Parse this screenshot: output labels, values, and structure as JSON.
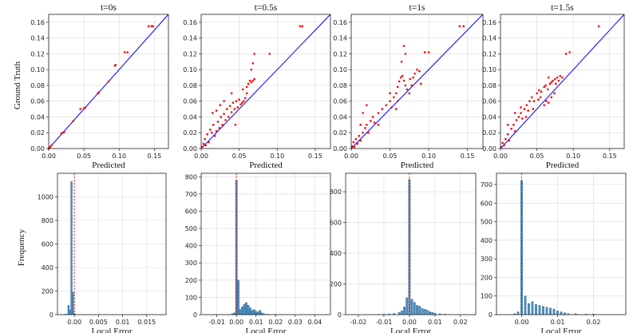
{
  "figure": {
    "ylabel_top": "Ground Truth",
    "ylabel_bottom": "Frequency"
  },
  "chart_data": [
    {
      "type": "scatter",
      "title": "t=0s",
      "xlabel": "Predicted",
      "ylabel": "Ground Truth",
      "xlim": [
        0,
        0.17
      ],
      "ylim": [
        0,
        0.17
      ],
      "xticks": [
        0.0,
        0.05,
        0.1,
        0.15
      ],
      "yticks": [
        0.0,
        0.02,
        0.04,
        0.06,
        0.08,
        0.1,
        0.12,
        0.14,
        0.16
      ],
      "grid": true,
      "reference_line": "y = x",
      "reference_color": "#0000ff",
      "point_color": "#ff0000",
      "points": [
        [
          0.0,
          0.0
        ],
        [
          0.002,
          0.002
        ],
        [
          0.004,
          0.004
        ],
        [
          0.018,
          0.019
        ],
        [
          0.02,
          0.02
        ],
        [
          0.022,
          0.021
        ],
        [
          0.035,
          0.035
        ],
        [
          0.045,
          0.05
        ],
        [
          0.05,
          0.051
        ],
        [
          0.052,
          0.052
        ],
        [
          0.07,
          0.07
        ],
        [
          0.071,
          0.071
        ],
        [
          0.085,
          0.085
        ],
        [
          0.094,
          0.105
        ],
        [
          0.095,
          0.106
        ],
        [
          0.108,
          0.122
        ],
        [
          0.112,
          0.122
        ],
        [
          0.142,
          0.155
        ],
        [
          0.146,
          0.155
        ],
        [
          0.148,
          0.155
        ]
      ]
    },
    {
      "type": "scatter",
      "title": "t=0.5s",
      "xlabel": "Predicted",
      "ylabel": "",
      "xlim": [
        0,
        0.17
      ],
      "ylim": [
        0,
        0.17
      ],
      "xticks": [
        0.0,
        0.05,
        0.1,
        0.15
      ],
      "yticks": [
        0.0,
        0.02,
        0.04,
        0.06,
        0.08,
        0.1,
        0.12,
        0.14,
        0.16
      ],
      "grid": true,
      "reference_line": "y = x",
      "reference_color": "#0000ff",
      "point_color": "#ff0000",
      "points": [
        [
          0.001,
          0.002
        ],
        [
          0.003,
          0.006
        ],
        [
          0.005,
          0.012
        ],
        [
          0.006,
          0.004
        ],
        [
          0.008,
          0.018
        ],
        [
          0.01,
          0.008
        ],
        [
          0.012,
          0.024
        ],
        [
          0.014,
          0.02
        ],
        [
          0.016,
          0.03
        ],
        [
          0.018,
          0.016
        ],
        [
          0.02,
          0.022
        ],
        [
          0.022,
          0.034
        ],
        [
          0.024,
          0.026
        ],
        [
          0.026,
          0.04
        ],
        [
          0.028,
          0.03
        ],
        [
          0.03,
          0.044
        ],
        [
          0.032,
          0.036
        ],
        [
          0.034,
          0.05
        ],
        [
          0.036,
          0.04
        ],
        [
          0.038,
          0.054
        ],
        [
          0.04,
          0.046
        ],
        [
          0.042,
          0.058
        ],
        [
          0.044,
          0.05
        ],
        [
          0.046,
          0.06
        ],
        [
          0.048,
          0.052
        ],
        [
          0.05,
          0.062
        ],
        [
          0.052,
          0.056
        ],
        [
          0.054,
          0.058
        ],
        [
          0.056,
          0.06
        ],
        [
          0.058,
          0.064
        ],
        [
          0.06,
          0.07
        ],
        [
          0.06,
          0.078
        ],
        [
          0.062,
          0.082
        ],
        [
          0.064,
          0.086
        ],
        [
          0.066,
          0.084
        ],
        [
          0.068,
          0.086
        ],
        [
          0.07,
          0.088
        ],
        [
          0.066,
          0.1
        ],
        [
          0.068,
          0.108
        ],
        [
          0.07,
          0.12
        ],
        [
          0.09,
          0.12
        ],
        [
          0.13,
          0.155
        ],
        [
          0.133,
          0.155
        ],
        [
          0.015,
          0.045
        ],
        [
          0.025,
          0.055
        ],
        [
          0.04,
          0.07
        ],
        [
          0.03,
          0.06
        ],
        [
          0.02,
          0.048
        ],
        [
          0.045,
          0.03
        ],
        [
          0.055,
          0.075
        ]
      ]
    },
    {
      "type": "scatter",
      "title": "t=1s",
      "xlabel": "Predicted",
      "ylabel": "",
      "xlim": [
        0,
        0.17
      ],
      "ylim": [
        0,
        0.17
      ],
      "xticks": [
        0.0,
        0.05,
        0.1,
        0.15
      ],
      "yticks": [
        0.0,
        0.02,
        0.04,
        0.06,
        0.08,
        0.1,
        0.12,
        0.14,
        0.16
      ],
      "grid": true,
      "reference_line": "y = x",
      "reference_color": "#0000ff",
      "point_color": "#ff0000",
      "points": [
        [
          0.001,
          0.003
        ],
        [
          0.003,
          0.008
        ],
        [
          0.004,
          0.002
        ],
        [
          0.006,
          0.012
        ],
        [
          0.008,
          0.006
        ],
        [
          0.01,
          0.016
        ],
        [
          0.012,
          0.01
        ],
        [
          0.015,
          0.02
        ],
        [
          0.018,
          0.026
        ],
        [
          0.02,
          0.03
        ],
        [
          0.022,
          0.02
        ],
        [
          0.025,
          0.035
        ],
        [
          0.028,
          0.04
        ],
        [
          0.03,
          0.033
        ],
        [
          0.035,
          0.045
        ],
        [
          0.04,
          0.05
        ],
        [
          0.045,
          0.055
        ],
        [
          0.05,
          0.06
        ],
        [
          0.052,
          0.052
        ],
        [
          0.055,
          0.065
        ],
        [
          0.058,
          0.07
        ],
        [
          0.06,
          0.078
        ],
        [
          0.062,
          0.085
        ],
        [
          0.064,
          0.09
        ],
        [
          0.066,
          0.092
        ],
        [
          0.068,
          0.086
        ],
        [
          0.07,
          0.08
        ],
        [
          0.072,
          0.075
        ],
        [
          0.075,
          0.07
        ],
        [
          0.078,
          0.08
        ],
        [
          0.08,
          0.09
        ],
        [
          0.082,
          0.095
        ],
        [
          0.085,
          0.1
        ],
        [
          0.088,
          0.098
        ],
        [
          0.09,
          0.082
        ],
        [
          0.065,
          0.11
        ],
        [
          0.068,
          0.13
        ],
        [
          0.07,
          0.12
        ],
        [
          0.095,
          0.122
        ],
        [
          0.1,
          0.122
        ],
        [
          0.14,
          0.155
        ],
        [
          0.145,
          0.155
        ],
        [
          0.015,
          0.045
        ],
        [
          0.02,
          0.055
        ],
        [
          0.012,
          0.03
        ],
        [
          0.035,
          0.03
        ],
        [
          0.058,
          0.05
        ],
        [
          0.076,
          0.088
        ],
        [
          0.05,
          0.07
        ],
        [
          0.06,
          0.06
        ]
      ]
    },
    {
      "type": "scatter",
      "title": "t=1.5s",
      "xlabel": "Predicted",
      "ylabel": "",
      "xlim": [
        0,
        0.17
      ],
      "ylim": [
        0,
        0.17
      ],
      "xticks": [
        0.0,
        0.05,
        0.1,
        0.15
      ],
      "yticks": [
        0.0,
        0.02,
        0.04,
        0.06,
        0.08,
        0.1,
        0.12,
        0.14,
        0.16
      ],
      "grid": true,
      "reference_line": "y = x",
      "reference_color": "#0000ff",
      "point_color": "#ff0000",
      "points": [
        [
          0.001,
          0.002
        ],
        [
          0.003,
          0.007
        ],
        [
          0.005,
          0.004
        ],
        [
          0.007,
          0.012
        ],
        [
          0.01,
          0.018
        ],
        [
          0.012,
          0.01
        ],
        [
          0.015,
          0.025
        ],
        [
          0.018,
          0.03
        ],
        [
          0.02,
          0.022
        ],
        [
          0.022,
          0.036
        ],
        [
          0.025,
          0.04
        ],
        [
          0.028,
          0.045
        ],
        [
          0.03,
          0.038
        ],
        [
          0.033,
          0.05
        ],
        [
          0.036,
          0.055
        ],
        [
          0.04,
          0.06
        ],
        [
          0.043,
          0.065
        ],
        [
          0.046,
          0.06
        ],
        [
          0.05,
          0.07
        ],
        [
          0.053,
          0.074
        ],
        [
          0.056,
          0.072
        ],
        [
          0.06,
          0.078
        ],
        [
          0.062,
          0.08
        ],
        [
          0.065,
          0.075
        ],
        [
          0.068,
          0.082
        ],
        [
          0.07,
          0.084
        ],
        [
          0.072,
          0.086
        ],
        [
          0.075,
          0.088
        ],
        [
          0.078,
          0.09
        ],
        [
          0.08,
          0.086
        ],
        [
          0.082,
          0.092
        ],
        [
          0.085,
          0.09
        ],
        [
          0.063,
          0.06
        ],
        [
          0.066,
          0.058
        ],
        [
          0.07,
          0.065
        ],
        [
          0.09,
          0.12
        ],
        [
          0.095,
          0.122
        ],
        [
          0.135,
          0.155
        ],
        [
          0.01,
          0.03
        ],
        [
          0.02,
          0.045
        ],
        [
          0.035,
          0.04
        ],
        [
          0.045,
          0.05
        ],
        [
          0.055,
          0.065
        ],
        [
          0.06,
          0.055
        ],
        [
          0.074,
          0.07
        ],
        [
          0.052,
          0.062
        ],
        [
          0.028,
          0.052
        ],
        [
          0.038,
          0.048
        ],
        [
          0.066,
          0.09
        ],
        [
          0.076,
          0.082
        ]
      ]
    },
    {
      "type": "histogram",
      "title": "",
      "xlabel": "Local Error",
      "ylabel": "Frequency",
      "xlim": [
        -0.0035,
        0.019
      ],
      "ylim": [
        0,
        1200
      ],
      "xticks": [
        0.0,
        0.005,
        0.01,
        0.015
      ],
      "yticks": [
        0,
        200,
        400,
        600,
        800,
        1000
      ],
      "grid": true,
      "bar_color": "#4a90c2",
      "vline": 0.0,
      "vline_color": "#ff0000",
      "bins": [
        [
          -0.0018,
          5
        ],
        [
          -0.0012,
          80
        ],
        [
          -0.0009,
          40
        ],
        [
          -0.0006,
          1130
        ],
        [
          -0.0003,
          190
        ],
        [
          0.0,
          10
        ]
      ]
    },
    {
      "type": "histogram",
      "title": "",
      "xlabel": "Local Error",
      "ylabel": "",
      "xlim": [
        -0.018,
        0.048
      ],
      "ylim": [
        0,
        820
      ],
      "xticks": [
        -0.01,
        0.0,
        0.01,
        0.02,
        0.03,
        0.04
      ],
      "yticks": [
        0,
        100,
        200,
        300,
        400,
        500,
        600,
        700,
        800
      ],
      "grid": true,
      "bar_color": "#4a90c2",
      "vline": 0.0,
      "vline_color": "#ff0000",
      "bins": [
        [
          -0.004,
          2
        ],
        [
          -0.002,
          5
        ],
        [
          -0.001,
          10
        ],
        [
          0.0,
          780
        ],
        [
          0.001,
          200
        ],
        [
          0.002,
          30
        ],
        [
          0.003,
          45
        ],
        [
          0.004,
          60
        ],
        [
          0.005,
          70
        ],
        [
          0.006,
          55
        ],
        [
          0.007,
          40
        ],
        [
          0.008,
          25
        ],
        [
          0.009,
          30
        ],
        [
          0.01,
          20
        ],
        [
          0.011,
          15
        ],
        [
          0.012,
          25
        ],
        [
          0.013,
          10
        ],
        [
          0.014,
          5
        ],
        [
          0.016,
          3
        ],
        [
          0.02,
          2
        ]
      ]
    },
    {
      "type": "histogram",
      "title": "",
      "xlabel": "Local Error",
      "ylabel": "",
      "xlim": [
        -0.025,
        0.026
      ],
      "ylim": [
        0,
        920
      ],
      "xticks": [
        -0.02,
        -0.01,
        0.0,
        0.01,
        0.02
      ],
      "yticks": [
        0,
        200,
        400,
        600,
        800
      ],
      "grid": true,
      "bar_color": "#4a90c2",
      "vline": 0.0,
      "vline_color": "#ff0000",
      "bins": [
        [
          -0.012,
          2
        ],
        [
          -0.01,
          3
        ],
        [
          -0.008,
          5
        ],
        [
          -0.006,
          8
        ],
        [
          -0.004,
          15
        ],
        [
          -0.003,
          25
        ],
        [
          -0.002,
          50
        ],
        [
          -0.001,
          110
        ],
        [
          0.0,
          880
        ],
        [
          0.001,
          100
        ],
        [
          0.002,
          80
        ],
        [
          0.003,
          60
        ],
        [
          0.004,
          55
        ],
        [
          0.005,
          40
        ],
        [
          0.006,
          35
        ],
        [
          0.007,
          30
        ],
        [
          0.008,
          20
        ],
        [
          0.009,
          15
        ],
        [
          0.01,
          10
        ],
        [
          0.012,
          5
        ],
        [
          0.014,
          3
        ]
      ]
    },
    {
      "type": "histogram",
      "title": "",
      "xlabel": "Local Error",
      "ylabel": "",
      "xlim": [
        -0.007,
        0.029
      ],
      "ylim": [
        0,
        760
      ],
      "xticks": [
        0.0,
        0.01,
        0.02
      ],
      "yticks": [
        0,
        100,
        200,
        300,
        400,
        500,
        600,
        700
      ],
      "grid": true,
      "bar_color": "#4a90c2",
      "vline": 0.0,
      "vline_color": "#ff0000",
      "bins": [
        [
          -0.002,
          5
        ],
        [
          -0.001,
          15
        ],
        [
          0.0,
          720
        ],
        [
          0.001,
          100
        ],
        [
          0.002,
          60
        ],
        [
          0.003,
          70
        ],
        [
          0.004,
          55
        ],
        [
          0.005,
          50
        ],
        [
          0.006,
          45
        ],
        [
          0.007,
          40
        ],
        [
          0.008,
          35
        ],
        [
          0.009,
          30
        ],
        [
          0.01,
          20
        ],
        [
          0.011,
          15
        ],
        [
          0.012,
          10
        ],
        [
          0.013,
          5
        ],
        [
          0.015,
          5
        ],
        [
          0.018,
          3
        ],
        [
          0.02,
          3
        ]
      ]
    }
  ]
}
